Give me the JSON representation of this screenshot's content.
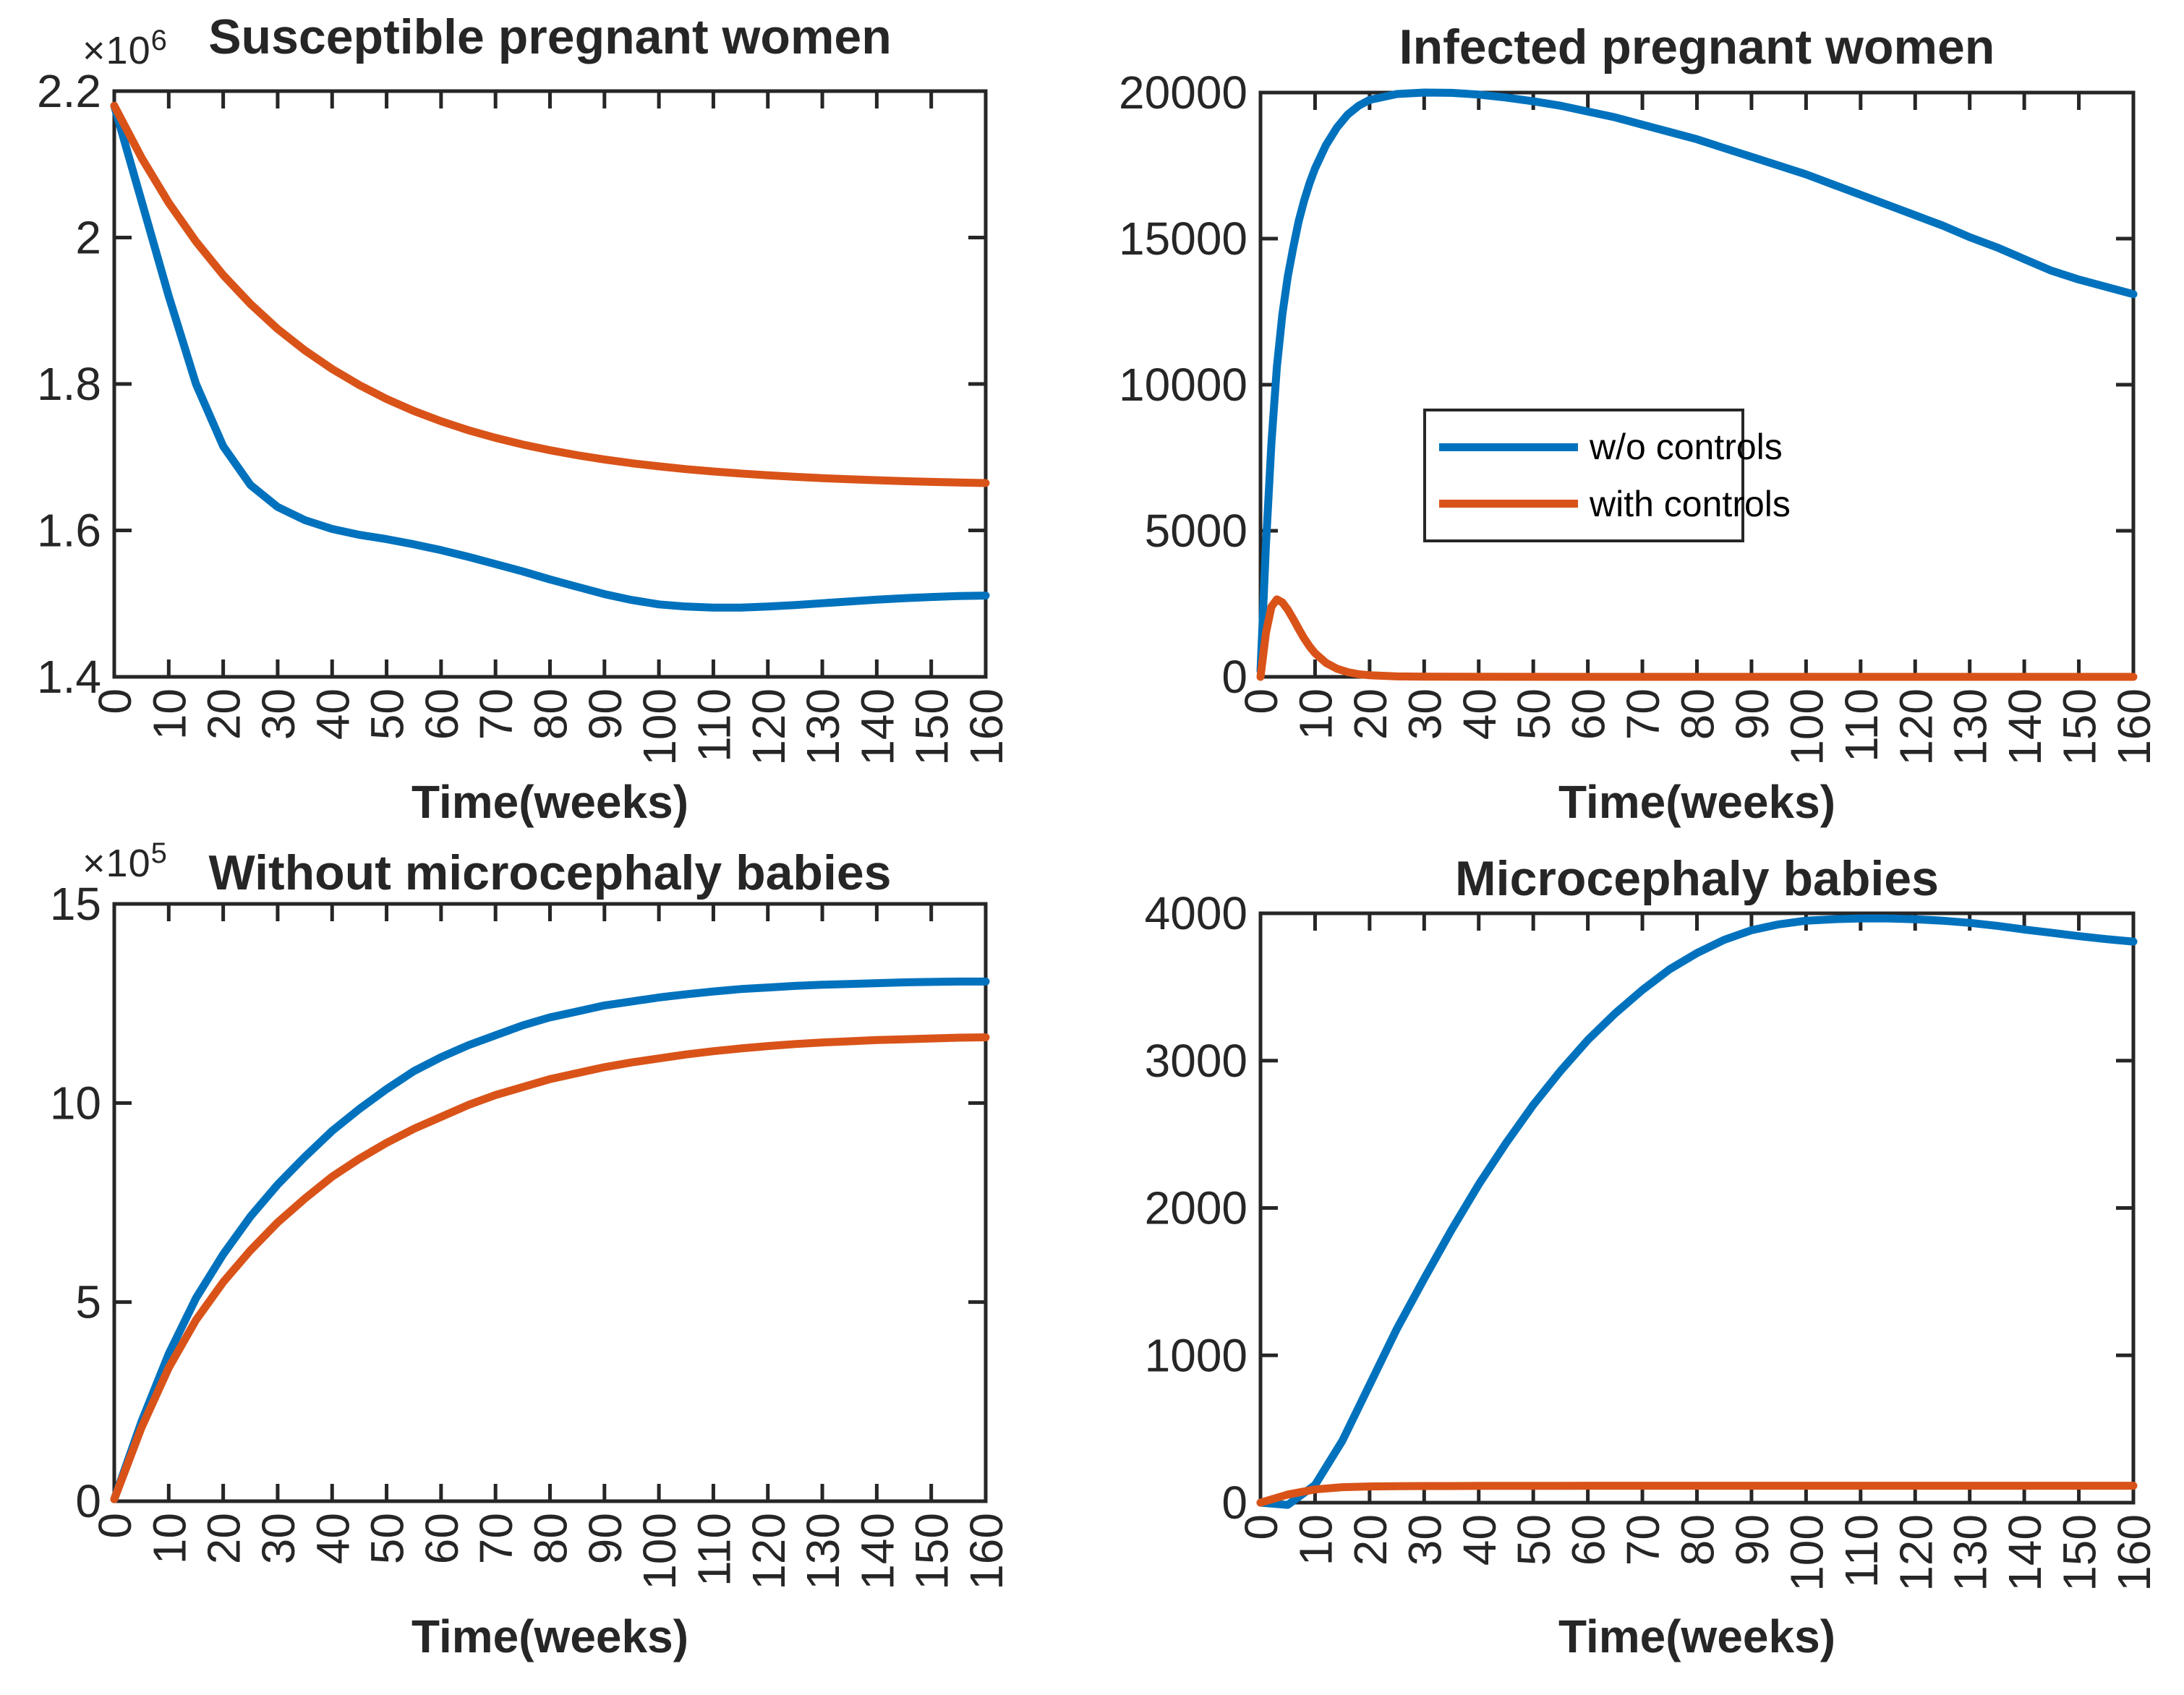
{
  "figure": {
    "background": "#ffffff",
    "axis_color": "#262626",
    "accent_blue": "#0072BD",
    "accent_orange": "#D95319"
  },
  "legend": {
    "items": [
      {
        "label": "w/o controls",
        "color": "#0072BD"
      },
      {
        "label": "with controls",
        "color": "#D95319"
      }
    ]
  },
  "chart_data": [
    {
      "type": "line",
      "title": "Susceptible pregnant women",
      "xlabel": "Time(weeks)",
      "y_offset_base": "×10",
      "y_offset_exp": "6",
      "xlim": [
        0,
        160
      ],
      "ylim": [
        1400000,
        2200000
      ],
      "xticks": [
        0,
        10,
        20,
        30,
        40,
        50,
        60,
        70,
        80,
        90,
        100,
        110,
        120,
        130,
        140,
        150,
        160
      ],
      "xtick_labels": [
        "0",
        "10",
        "20",
        "30",
        "40",
        "50",
        "60",
        "70",
        "80",
        "90",
        "100",
        "110",
        "120",
        "130",
        "140",
        "150",
        "160"
      ],
      "xtick_rotation": -90,
      "yticks": [
        1400000,
        1600000,
        1800000,
        2000000,
        2200000
      ],
      "ytick_labels": [
        "1.4",
        "1.6",
        "1.8",
        "2",
        "2.2"
      ],
      "grid": false,
      "legend_position": null,
      "series": [
        {
          "name": "w/o controls",
          "color": "#0072BD",
          "x": [
            0,
            5,
            10,
            15,
            20,
            25,
            30,
            35,
            40,
            45,
            50,
            55,
            60,
            65,
            70,
            75,
            80,
            85,
            90,
            95,
            100,
            105,
            110,
            115,
            120,
            125,
            130,
            135,
            140,
            145,
            150,
            155,
            160
          ],
          "y": [
            2180000,
            2050000,
            1920000,
            1800000,
            1715000,
            1662000,
            1632000,
            1614000,
            1602000,
            1594000,
            1588000,
            1581000,
            1573000,
            1564000,
            1554000,
            1544000,
            1533000,
            1523000,
            1513000,
            1505000,
            1499000,
            1496000,
            1494500,
            1494500,
            1496000,
            1498000,
            1500500,
            1503000,
            1505500,
            1507500,
            1509000,
            1510300,
            1511000
          ]
        },
        {
          "name": "with controls",
          "color": "#D95319",
          "x": [
            0,
            5,
            10,
            15,
            20,
            25,
            30,
            35,
            40,
            45,
            50,
            55,
            60,
            65,
            70,
            75,
            80,
            85,
            90,
            95,
            100,
            105,
            110,
            115,
            120,
            125,
            130,
            135,
            140,
            145,
            150,
            155,
            160
          ],
          "y": [
            2180000,
            2109000,
            2047500,
            1994600,
            1948800,
            1909300,
            1875200,
            1845800,
            1820400,
            1798500,
            1779500,
            1763200,
            1749100,
            1736900,
            1726400,
            1717300,
            1709500,
            1702700,
            1696900,
            1691800,
            1687500,
            1683700,
            1680500,
            1677700,
            1675300,
            1673200,
            1671400,
            1669800,
            1668500,
            1667300,
            1666300,
            1665500,
            1664700
          ]
        }
      ]
    },
    {
      "type": "line",
      "title": "Infected pregnant women",
      "xlabel": "Time(weeks)",
      "y_offset_base": null,
      "y_offset_exp": null,
      "xlim": [
        0,
        160
      ],
      "ylim": [
        0,
        20000
      ],
      "xticks": [
        0,
        10,
        20,
        30,
        40,
        50,
        60,
        70,
        80,
        90,
        100,
        110,
        120,
        130,
        140,
        150,
        160
      ],
      "xtick_labels": [
        "0",
        "10",
        "20",
        "30",
        "40",
        "50",
        "60",
        "70",
        "80",
        "90",
        "100",
        "110",
        "120",
        "130",
        "140",
        "150",
        "160"
      ],
      "xtick_rotation": -90,
      "yticks": [
        0,
        5000,
        10000,
        15000,
        20000
      ],
      "ytick_labels": [
        "0",
        "5000",
        "10000",
        "15000",
        "20000"
      ],
      "grid": false,
      "legend_position": "inside-right-middle",
      "series": [
        {
          "name": "w/o controls",
          "color": "#0072BD",
          "x": [
            0,
            1,
            2,
            3,
            4,
            5,
            6,
            7,
            8,
            9,
            10,
            12,
            14,
            16,
            18,
            20,
            25,
            30,
            35,
            40,
            45,
            50,
            55,
            60,
            65,
            70,
            75,
            80,
            85,
            90,
            95,
            100,
            105,
            110,
            115,
            120,
            125,
            130,
            135,
            140,
            145,
            150,
            155,
            160
          ],
          "y": [
            200,
            4500,
            8000,
            10600,
            12400,
            13700,
            14700,
            15600,
            16300,
            16900,
            17400,
            18200,
            18800,
            19250,
            19550,
            19750,
            19950,
            20000,
            19990,
            19930,
            19830,
            19700,
            19550,
            19350,
            19150,
            18900,
            18650,
            18400,
            18100,
            17800,
            17500,
            17200,
            16850,
            16500,
            16150,
            15800,
            15450,
            15050,
            14700,
            14300,
            13900,
            13600,
            13350,
            13100
          ]
        },
        {
          "name": "with controls",
          "color": "#D95319",
          "x": [
            0,
            1,
            2,
            3,
            4,
            5,
            6,
            7,
            8,
            9,
            10,
            12,
            14,
            16,
            18,
            20,
            25,
            30,
            40,
            60,
            100,
            160
          ],
          "y": [
            0,
            1500,
            2400,
            2650,
            2550,
            2300,
            1980,
            1640,
            1320,
            1040,
            810,
            480,
            280,
            160,
            90,
            55,
            15,
            6,
            2,
            1,
            0,
            0
          ]
        }
      ]
    },
    {
      "type": "line",
      "title": "Without microcephaly babies",
      "xlabel": "Time(weeks)",
      "y_offset_base": "×10",
      "y_offset_exp": "5",
      "xlim": [
        0,
        160
      ],
      "ylim": [
        0,
        1500000
      ],
      "xticks": [
        0,
        10,
        20,
        30,
        40,
        50,
        60,
        70,
        80,
        90,
        100,
        110,
        120,
        130,
        140,
        150,
        160
      ],
      "xtick_labels": [
        "0",
        "10",
        "20",
        "30",
        "40",
        "50",
        "60",
        "70",
        "80",
        "90",
        "100",
        "110",
        "120",
        "130",
        "140",
        "150",
        "160"
      ],
      "xtick_rotation": -90,
      "yticks": [
        0,
        500000,
        1000000,
        1500000
      ],
      "ytick_labels": [
        "0",
        "5",
        "10",
        "15"
      ],
      "grid": false,
      "legend_position": null,
      "series": [
        {
          "name": "w/o controls",
          "color": "#0072BD",
          "x": [
            0,
            5,
            10,
            15,
            20,
            25,
            30,
            35,
            40,
            45,
            50,
            55,
            60,
            65,
            70,
            75,
            80,
            85,
            90,
            95,
            100,
            105,
            110,
            115,
            120,
            125,
            130,
            135,
            140,
            145,
            150,
            155,
            160
          ],
          "y": [
            5000,
            200000,
            370000,
            510000,
            620000,
            715000,
            795000,
            865000,
            930000,
            985000,
            1035000,
            1080000,
            1115000,
            1145000,
            1170000,
            1195000,
            1215000,
            1230000,
            1245000,
            1255000,
            1265000,
            1273000,
            1280000,
            1286000,
            1290000,
            1294000,
            1297000,
            1299000,
            1301000,
            1303000,
            1304000,
            1305000,
            1305000
          ]
        },
        {
          "name": "with controls",
          "color": "#D95319",
          "x": [
            0,
            5,
            10,
            15,
            20,
            25,
            30,
            35,
            40,
            45,
            50,
            55,
            60,
            65,
            70,
            75,
            80,
            85,
            90,
            95,
            100,
            105,
            110,
            115,
            120,
            125,
            130,
            135,
            140,
            145,
            150,
            155,
            160
          ],
          "y": [
            5000,
            185000,
            335000,
            455000,
            550000,
            630000,
            700000,
            760000,
            815000,
            860000,
            900000,
            935000,
            965000,
            995000,
            1020000,
            1040000,
            1060000,
            1075000,
            1090000,
            1102000,
            1112000,
            1122000,
            1130000,
            1137000,
            1143000,
            1148000,
            1152000,
            1155000,
            1158000,
            1160000,
            1162000,
            1164000,
            1165000
          ]
        }
      ]
    },
    {
      "type": "line",
      "title": "Microcephaly babies",
      "xlabel": "Time(weeks)",
      "y_offset_base": null,
      "y_offset_exp": null,
      "xlim": [
        0,
        160
      ],
      "ylim": [
        0,
        4000
      ],
      "xticks": [
        0,
        10,
        20,
        30,
        40,
        50,
        60,
        70,
        80,
        90,
        100,
        110,
        120,
        130,
        140,
        150,
        160
      ],
      "xtick_labels": [
        "0",
        "10",
        "20",
        "30",
        "40",
        "50",
        "60",
        "70",
        "80",
        "90",
        "100",
        "110",
        "120",
        "130",
        "140",
        "150",
        "160"
      ],
      "xtick_rotation": -90,
      "yticks": [
        0,
        1000,
        2000,
        3000,
        4000
      ],
      "ytick_labels": [
        "0",
        "1000",
        "2000",
        "3000",
        "4000"
      ],
      "grid": false,
      "legend_position": null,
      "series": [
        {
          "name": "w/o controls",
          "color": "#0072BD",
          "x": [
            0,
            5,
            10,
            15,
            20,
            25,
            30,
            35,
            40,
            45,
            50,
            55,
            60,
            65,
            70,
            75,
            80,
            85,
            90,
            95,
            100,
            105,
            110,
            115,
            120,
            125,
            130,
            135,
            140,
            145,
            150,
            155,
            160
          ],
          "y": [
            0,
            -15,
            120,
            420,
            800,
            1180,
            1520,
            1850,
            2160,
            2440,
            2700,
            2930,
            3140,
            3320,
            3480,
            3620,
            3730,
            3820,
            3885,
            3925,
            3950,
            3960,
            3965,
            3965,
            3960,
            3950,
            3935,
            3915,
            3890,
            3868,
            3845,
            3825,
            3808
          ]
        },
        {
          "name": "with controls",
          "color": "#D95319",
          "x": [
            0,
            5,
            10,
            15,
            20,
            25,
            30,
            35,
            40,
            45,
            50,
            55,
            60,
            65,
            70,
            75,
            80,
            85,
            90,
            95,
            100,
            105,
            110,
            115,
            120,
            125,
            130,
            135,
            140,
            145,
            150,
            155,
            160
          ],
          "y": [
            0,
            55,
            90,
            105,
            110,
            112,
            113,
            113,
            114,
            114,
            114,
            114,
            115,
            115,
            115,
            115,
            115,
            115,
            115,
            115,
            115,
            115,
            115,
            115,
            115,
            115,
            115,
            115,
            115,
            115,
            115,
            115,
            115
          ]
        }
      ]
    }
  ]
}
